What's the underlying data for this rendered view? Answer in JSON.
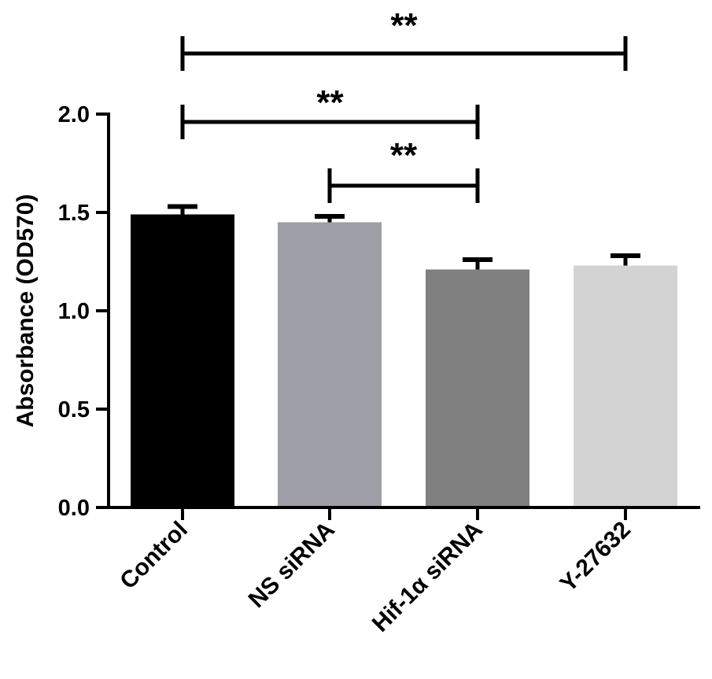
{
  "chart_data": {
    "type": "bar",
    "categories": [
      "Control",
      "NS siRNA",
      "Hif-1α siRNA",
      "Y-27632"
    ],
    "values": [
      1.49,
      1.45,
      1.21,
      1.23
    ],
    "errors": [
      0.04,
      0.03,
      0.05,
      0.05
    ],
    "colors": [
      "#000000",
      "#9e9ea6",
      "#808080",
      "#d3d3d3"
    ],
    "ylabel": "Absorbance (OD570)",
    "ylim": [
      0,
      2.0
    ],
    "yticks": [
      "0.0",
      "0.5",
      "1.0",
      "1.5",
      "2.0"
    ],
    "grid": false,
    "significance": [
      {
        "from": 0,
        "to": 3,
        "label": "**"
      },
      {
        "from": 0,
        "to": 2,
        "label": "**"
      },
      {
        "from": 1,
        "to": 2,
        "label": "**"
      }
    ]
  }
}
